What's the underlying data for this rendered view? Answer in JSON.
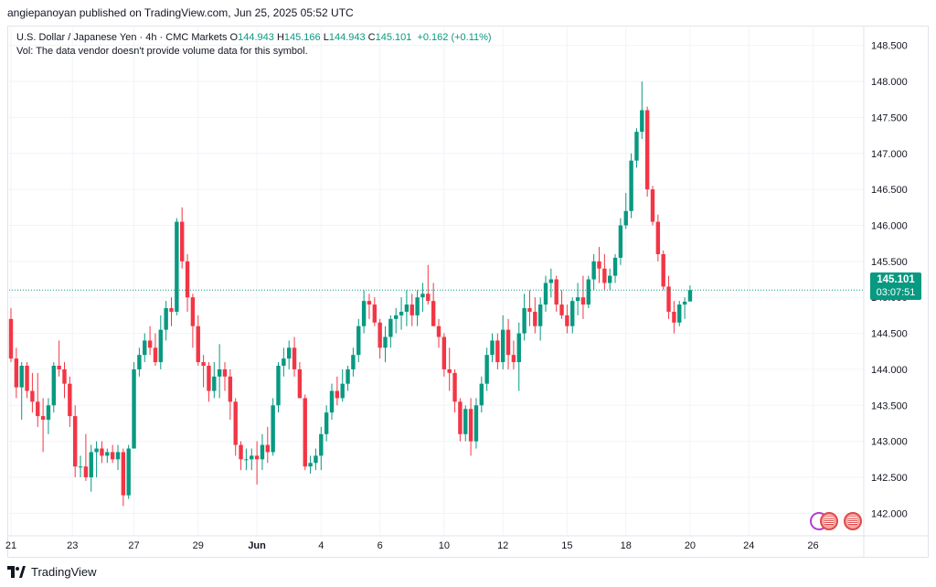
{
  "header": {
    "published": "angiepanoyan published on TradingView.com, Jun 25, 2025 05:52 UTC"
  },
  "legend": {
    "symbol": "U.S. Dollar / Japanese Yen · 4h · CMC Markets",
    "open_label": "O",
    "open": "144.943",
    "high_label": "H",
    "high": "145.166",
    "low_label": "L",
    "low": "144.943",
    "close_label": "C",
    "close": "145.101",
    "change": "+0.162 (+0.11%)",
    "volume_note": "Vol: The data vendor doesn't provide volume data for this symbol."
  },
  "price_badge": {
    "price": "145.101",
    "countdown": "03:07:51"
  },
  "footer": {
    "brand": "TradingView"
  },
  "colors": {
    "up": "#089981",
    "down": "#f23645",
    "grid": "#f0f3fa",
    "axis_text": "#131722"
  },
  "icons": [
    "lightning-icon",
    "us-flag-icon",
    "us-flag-icon"
  ],
  "chart_data": {
    "type": "candlestick",
    "title": "U.S. Dollar / Japanese Yen · 4h · CMC Markets",
    "ylim": [
      141.7,
      148.75
    ],
    "y_ticks": [
      "148.500",
      "148.000",
      "147.500",
      "147.000",
      "146.500",
      "146.000",
      "145.500",
      "145.000",
      "144.500",
      "144.000",
      "143.500",
      "143.000",
      "142.500",
      "142.000"
    ],
    "x_ticks": [
      "21",
      "23",
      "27",
      "29",
      "Jun",
      "4",
      "6",
      "10",
      "12",
      "15",
      "18",
      "20",
      "24",
      "26"
    ],
    "x_tick_index": [
      0,
      11.5,
      23,
      35,
      46,
      58,
      69,
      81,
      92,
      104,
      115,
      127,
      138,
      150
    ],
    "last_price": 145.101,
    "ohlc": [
      [
        144.7,
        144.85,
        144.1,
        144.15
      ],
      [
        144.15,
        144.3,
        143.6,
        143.75
      ],
      [
        143.75,
        144.1,
        143.3,
        144.05
      ],
      [
        144.05,
        144.1,
        143.6,
        143.7
      ],
      [
        143.7,
        143.95,
        143.4,
        143.55
      ],
      [
        143.55,
        143.95,
        143.2,
        143.35
      ],
      [
        143.35,
        143.6,
        142.85,
        143.3
      ],
      [
        143.3,
        143.6,
        143.1,
        143.5
      ],
      [
        143.5,
        144.1,
        143.4,
        144.05
      ],
      [
        144.05,
        144.4,
        143.9,
        144.0
      ],
      [
        144.0,
        144.1,
        143.6,
        143.8
      ],
      [
        143.8,
        143.9,
        143.2,
        143.35
      ],
      [
        143.35,
        143.5,
        142.5,
        142.65
      ],
      [
        142.65,
        142.8,
        142.5,
        142.65
      ],
      [
        142.65,
        143.1,
        142.45,
        142.5
      ],
      [
        142.5,
        142.95,
        142.3,
        142.85
      ],
      [
        142.85,
        143.0,
        142.5,
        142.9
      ],
      [
        142.9,
        143.0,
        142.7,
        142.8
      ],
      [
        142.8,
        142.9,
        142.7,
        142.85
      ],
      [
        142.85,
        142.95,
        142.7,
        142.75
      ],
      [
        142.75,
        142.95,
        142.6,
        142.85
      ],
      [
        142.85,
        142.9,
        142.1,
        142.25
      ],
      [
        142.25,
        142.95,
        142.2,
        142.9
      ],
      [
        142.9,
        144.1,
        142.9,
        144.0
      ],
      [
        144.0,
        144.3,
        143.9,
        144.2
      ],
      [
        144.2,
        144.5,
        144.1,
        144.4
      ],
      [
        144.4,
        144.6,
        144.2,
        144.3
      ],
      [
        144.3,
        144.5,
        144.05,
        144.1
      ],
      [
        144.1,
        144.75,
        144.0,
        144.55
      ],
      [
        144.55,
        144.95,
        144.4,
        144.85
      ],
      [
        144.85,
        145.0,
        144.6,
        144.8
      ],
      [
        144.8,
        146.1,
        144.75,
        146.05
      ],
      [
        146.05,
        146.25,
        145.4,
        145.5
      ],
      [
        145.5,
        145.6,
        144.8,
        145.0
      ],
      [
        145.0,
        145.05,
        144.3,
        144.6
      ],
      [
        144.6,
        144.75,
        144.05,
        144.1
      ],
      [
        144.1,
        144.2,
        143.75,
        144.05
      ],
      [
        144.05,
        144.1,
        143.55,
        143.7
      ],
      [
        143.7,
        144.1,
        143.6,
        143.9
      ],
      [
        143.9,
        144.35,
        143.6,
        144.0
      ],
      [
        144.0,
        144.1,
        143.7,
        143.9
      ],
      [
        143.9,
        144.0,
        143.3,
        143.55
      ],
      [
        143.55,
        143.6,
        142.8,
        142.95
      ],
      [
        142.95,
        143.0,
        142.6,
        142.75
      ],
      [
        142.75,
        142.9,
        142.6,
        142.75
      ],
      [
        142.75,
        142.9,
        142.6,
        142.8
      ],
      [
        142.8,
        143.0,
        142.4,
        142.75
      ],
      [
        142.75,
        143.1,
        142.6,
        142.95
      ],
      [
        142.95,
        143.2,
        142.7,
        142.85
      ],
      [
        142.85,
        143.6,
        142.8,
        143.5
      ],
      [
        143.5,
        144.1,
        143.4,
        144.05
      ],
      [
        144.05,
        144.3,
        143.9,
        144.15
      ],
      [
        144.15,
        144.4,
        144.0,
        144.3
      ],
      [
        144.3,
        144.45,
        143.9,
        144.0
      ],
      [
        144.0,
        144.1,
        143.6,
        143.6
      ],
      [
        143.6,
        143.65,
        142.6,
        142.65
      ],
      [
        142.65,
        142.8,
        142.55,
        142.7
      ],
      [
        142.7,
        142.9,
        142.6,
        142.8
      ],
      [
        142.8,
        143.2,
        142.6,
        143.1
      ],
      [
        143.1,
        143.5,
        143.0,
        143.4
      ],
      [
        143.4,
        143.8,
        143.3,
        143.7
      ],
      [
        143.7,
        143.9,
        143.5,
        143.6
      ],
      [
        143.6,
        144.0,
        143.55,
        143.8
      ],
      [
        143.8,
        144.05,
        143.7,
        144.0
      ],
      [
        144.0,
        144.3,
        143.9,
        144.2
      ],
      [
        144.2,
        144.7,
        144.1,
        144.6
      ],
      [
        144.6,
        145.1,
        144.5,
        144.95
      ],
      [
        144.95,
        145.05,
        144.7,
        144.9
      ],
      [
        144.9,
        145.0,
        144.6,
        144.65
      ],
      [
        144.65,
        144.7,
        144.15,
        144.3
      ],
      [
        144.3,
        144.6,
        144.1,
        144.45
      ],
      [
        144.45,
        144.75,
        144.3,
        144.7
      ],
      [
        144.7,
        144.85,
        144.5,
        144.75
      ],
      [
        144.75,
        145.0,
        144.55,
        144.8
      ],
      [
        144.8,
        145.1,
        144.6,
        144.9
      ],
      [
        144.9,
        145.05,
        144.6,
        144.75
      ],
      [
        144.75,
        145.1,
        144.6,
        145.0
      ],
      [
        145.0,
        145.2,
        144.8,
        145.05
      ],
      [
        145.05,
        145.45,
        144.9,
        144.95
      ],
      [
        144.95,
        145.2,
        144.6,
        144.6
      ],
      [
        144.6,
        144.7,
        144.3,
        144.45
      ],
      [
        144.45,
        144.5,
        143.9,
        144.0
      ],
      [
        144.0,
        144.3,
        143.7,
        143.95
      ],
      [
        143.95,
        144.0,
        143.4,
        143.55
      ],
      [
        143.55,
        143.6,
        143.0,
        143.1
      ],
      [
        143.1,
        143.5,
        143.0,
        143.45
      ],
      [
        143.45,
        143.6,
        142.8,
        143.0
      ],
      [
        143.0,
        143.6,
        142.9,
        143.5
      ],
      [
        143.5,
        143.9,
        143.4,
        143.8
      ],
      [
        143.8,
        144.3,
        143.7,
        144.2
      ],
      [
        144.2,
        144.5,
        144.1,
        144.4
      ],
      [
        144.4,
        144.5,
        144.0,
        144.1
      ],
      [
        144.1,
        144.75,
        144.0,
        144.55
      ],
      [
        144.55,
        144.7,
        144.0,
        144.2
      ],
      [
        144.2,
        144.4,
        144.0,
        144.1
      ],
      [
        144.1,
        144.65,
        143.7,
        144.5
      ],
      [
        144.5,
        145.05,
        144.4,
        144.85
      ],
      [
        144.85,
        145.1,
        144.6,
        144.8
      ],
      [
        144.8,
        145.0,
        144.5,
        144.6
      ],
      [
        144.6,
        145.0,
        144.4,
        144.9
      ],
      [
        144.9,
        145.3,
        144.8,
        145.2
      ],
      [
        145.2,
        145.4,
        145.0,
        145.25
      ],
      [
        145.25,
        145.3,
        144.8,
        144.9
      ],
      [
        144.9,
        145.1,
        144.7,
        144.75
      ],
      [
        144.75,
        144.9,
        144.5,
        144.6
      ],
      [
        144.6,
        145.0,
        144.5,
        144.95
      ],
      [
        144.95,
        145.2,
        144.75,
        145.0
      ],
      [
        145.0,
        145.3,
        144.7,
        144.9
      ],
      [
        144.9,
        145.3,
        144.85,
        145.25
      ],
      [
        145.25,
        145.6,
        145.1,
        145.5
      ],
      [
        145.5,
        145.7,
        145.2,
        145.4
      ],
      [
        145.4,
        145.6,
        145.1,
        145.2
      ],
      [
        145.2,
        145.4,
        145.1,
        145.3
      ],
      [
        145.3,
        145.6,
        145.2,
        145.55
      ],
      [
        145.55,
        146.1,
        145.45,
        146.0
      ],
      [
        146.0,
        146.45,
        145.95,
        146.2
      ],
      [
        146.2,
        147.0,
        146.1,
        146.9
      ],
      [
        146.9,
        147.35,
        146.8,
        147.3
      ],
      [
        147.3,
        148.0,
        147.2,
        147.6
      ],
      [
        147.6,
        147.65,
        146.4,
        146.5
      ],
      [
        146.5,
        146.55,
        146.0,
        146.05
      ],
      [
        146.05,
        146.15,
        145.5,
        145.6
      ],
      [
        145.6,
        145.65,
        145.1,
        145.15
      ],
      [
        145.15,
        145.3,
        144.7,
        144.8
      ],
      [
        144.8,
        144.95,
        144.5,
        144.65
      ],
      [
        144.65,
        144.95,
        144.6,
        144.9
      ],
      [
        144.9,
        145.0,
        144.7,
        144.94
      ],
      [
        144.943,
        145.166,
        144.943,
        145.101
      ]
    ]
  }
}
